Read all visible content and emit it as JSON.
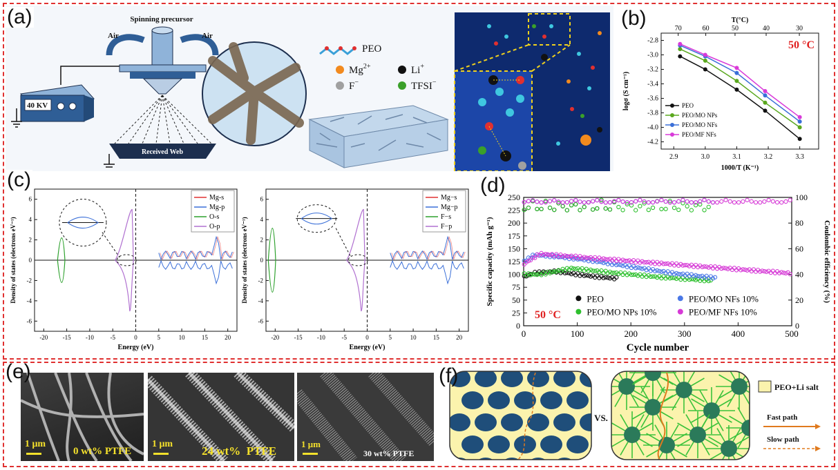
{
  "labels": {
    "a": "(a)",
    "b": "(b)",
    "c": "(c)",
    "d": "(d)",
    "e": "(e)",
    "f": "(f)"
  },
  "panel_a": {
    "spinning_precursor": "Spinning precursor",
    "air_left": "Air",
    "air_right": "Air",
    "voltage": "40 KV",
    "received_web": "Received Web",
    "legend": {
      "peo": "PEO",
      "mg": "Mg",
      "mg_sup": "2+",
      "li": "Li",
      "li_sup": "+",
      "f": "F",
      "f_sup": "−",
      "tfsi": "TFSI",
      "tfsi_sup": "−"
    },
    "colors": {
      "mg": "#f28a1e",
      "li": "#111111",
      "f": "#a0a0a0",
      "tfsi": "#3aa02a"
    }
  },
  "chart_data": [
    {
      "id": "b",
      "type": "line",
      "annotation": "50 °C",
      "top_axis_label": "T(°C)",
      "top_ticks": [
        "70",
        "60",
        "50",
        "40",
        "30"
      ],
      "xlabel": "1000/T (K⁻¹)",
      "ylabel": "logσ (S cm⁻¹)",
      "xlim": [
        2.86,
        3.36
      ],
      "ylim": [
        -4.3,
        -2.7
      ],
      "xticks": [
        "2.9",
        "3.0",
        "3.1",
        "3.2",
        "3.3"
      ],
      "yticks": [
        "-2.8",
        "-3.0",
        "-3.2",
        "-3.4",
        "-3.6",
        "-3.8",
        "-4.0",
        "-4.2"
      ],
      "x": [
        2.92,
        3.0,
        3.1,
        3.19,
        3.3
      ],
      "series": [
        {
          "name": "PEO",
          "color": "#111111",
          "values": [
            -3.02,
            -3.2,
            -3.48,
            -3.77,
            -4.16
          ]
        },
        {
          "name": "PEO/MO NPs",
          "color": "#5aa81e",
          "values": [
            -2.92,
            -3.08,
            -3.36,
            -3.66,
            -4.0
          ]
        },
        {
          "name": "PEO/MO NFs",
          "color": "#3a6fd8",
          "values": [
            -2.87,
            -3.02,
            -3.25,
            -3.56,
            -3.92
          ]
        },
        {
          "name": "PEO/MF NFs",
          "color": "#d93ad9",
          "values": [
            -2.85,
            -3.0,
            -3.18,
            -3.5,
            -3.86
          ]
        }
      ]
    },
    {
      "id": "c-left",
      "type": "line",
      "xlabel": "Energy (eV)",
      "ylabel": "Density of states (electrons eV⁻¹)",
      "xlim": [
        -22,
        22
      ],
      "ylim": [
        -7,
        7
      ],
      "xticks": [
        "-20",
        "-15",
        "-10",
        "-5",
        "0",
        "5",
        "10",
        "15",
        "20"
      ],
      "yticks": [
        "6",
        "4",
        "2",
        "0",
        "-2",
        "-4",
        "-6"
      ],
      "legend": [
        {
          "name": "Mg-s",
          "color": "#e03030"
        },
        {
          "name": "Mg-p",
          "color": "#3a6fd8"
        },
        {
          "name": "O-s",
          "color": "#2ca02c"
        },
        {
          "name": "O-p",
          "color": "#b070d0"
        }
      ]
    },
    {
      "id": "c-right",
      "type": "line",
      "xlabel": "Energy (eV)",
      "ylabel": "Density of states (electrons eV⁻¹)",
      "xlim": [
        -22,
        22
      ],
      "ylim": [
        -7,
        7
      ],
      "xticks": [
        "-20",
        "-15",
        "-10",
        "-5",
        "0",
        "5",
        "10",
        "15",
        "20"
      ],
      "yticks": [
        "6",
        "4",
        "2",
        "0",
        "-2",
        "-4",
        "-6"
      ],
      "legend": [
        {
          "name": "Mg−s",
          "color": "#e03030"
        },
        {
          "name": "Mg−p",
          "color": "#3a6fd8"
        },
        {
          "name": "F−s",
          "color": "#2ca02c"
        },
        {
          "name": "F−p",
          "color": "#b070d0"
        }
      ]
    },
    {
      "id": "d",
      "type": "scatter",
      "annotation": "50 °C",
      "xlabel": "Cycle number",
      "ylabel_left": "Specific capacity (mAh g⁻¹)",
      "ylabel_right": "Coulombic efficiency (%)",
      "xlim": [
        0,
        500
      ],
      "ylim_left": [
        0,
        250
      ],
      "ylim_right": [
        0,
        100
      ],
      "xticks": [
        "0",
        "100",
        "200",
        "300",
        "400",
        "500"
      ],
      "yticks_left": [
        "0",
        "25",
        "50",
        "75",
        "100",
        "125",
        "150",
        "175",
        "200",
        "225",
        "250"
      ],
      "yticks_right": [
        "0",
        "20",
        "40",
        "60",
        "80",
        "100"
      ],
      "series": [
        {
          "name": "PEO",
          "color": "#111111",
          "capacity": {
            "x": [
              0,
              20,
              60,
              100,
              140,
              175
            ],
            "y": [
              95,
              103,
              106,
              100,
              95,
              92
            ]
          },
          "efficiency_end": 175
        },
        {
          "name": "PEO/MO NPs 10%",
          "color": "#2ec02e",
          "capacity": {
            "x": [
              0,
              30,
              90,
              150,
              250,
              350
            ],
            "y": [
              100,
              100,
              112,
              105,
              95,
              88
            ]
          },
          "efficiency_end": 350
        },
        {
          "name": "PEO/MO NFs 10%",
          "color": "#4a78e6",
          "capacity": {
            "x": [
              0,
              20,
              60,
              120,
              200,
              280,
              360
            ],
            "y": [
              125,
              138,
              135,
              128,
              115,
              102,
              93
            ]
          },
          "efficiency_end": 360
        },
        {
          "name": "PEO/MF NFs 10%",
          "color": "#d63ad6",
          "capacity": {
            "x": [
              0,
              30,
              100,
              200,
              300,
              400,
              500
            ],
            "y": [
              120,
              140,
              134,
              126,
              118,
              110,
              102
            ]
          },
          "efficiency_end": 500
        }
      ]
    }
  ],
  "panel_e": {
    "images": [
      {
        "scale": "1 μm",
        "caption": "0 wt% PTFE"
      },
      {
        "scale": "1 μm",
        "caption": "24 wt%  PTFE"
      },
      {
        "scale": "1 μm",
        "caption": "30 wt% PTFE"
      }
    ]
  },
  "panel_f": {
    "vs": "VS.",
    "legend_box": "PEO+Li salt",
    "fast": "Fast path",
    "slow": "Slow path",
    "colors": {
      "particle": "#1f4e7a",
      "matrix": "#fbf3ad",
      "fiber": "#3bc23b",
      "fast": "#e07a1e"
    }
  }
}
